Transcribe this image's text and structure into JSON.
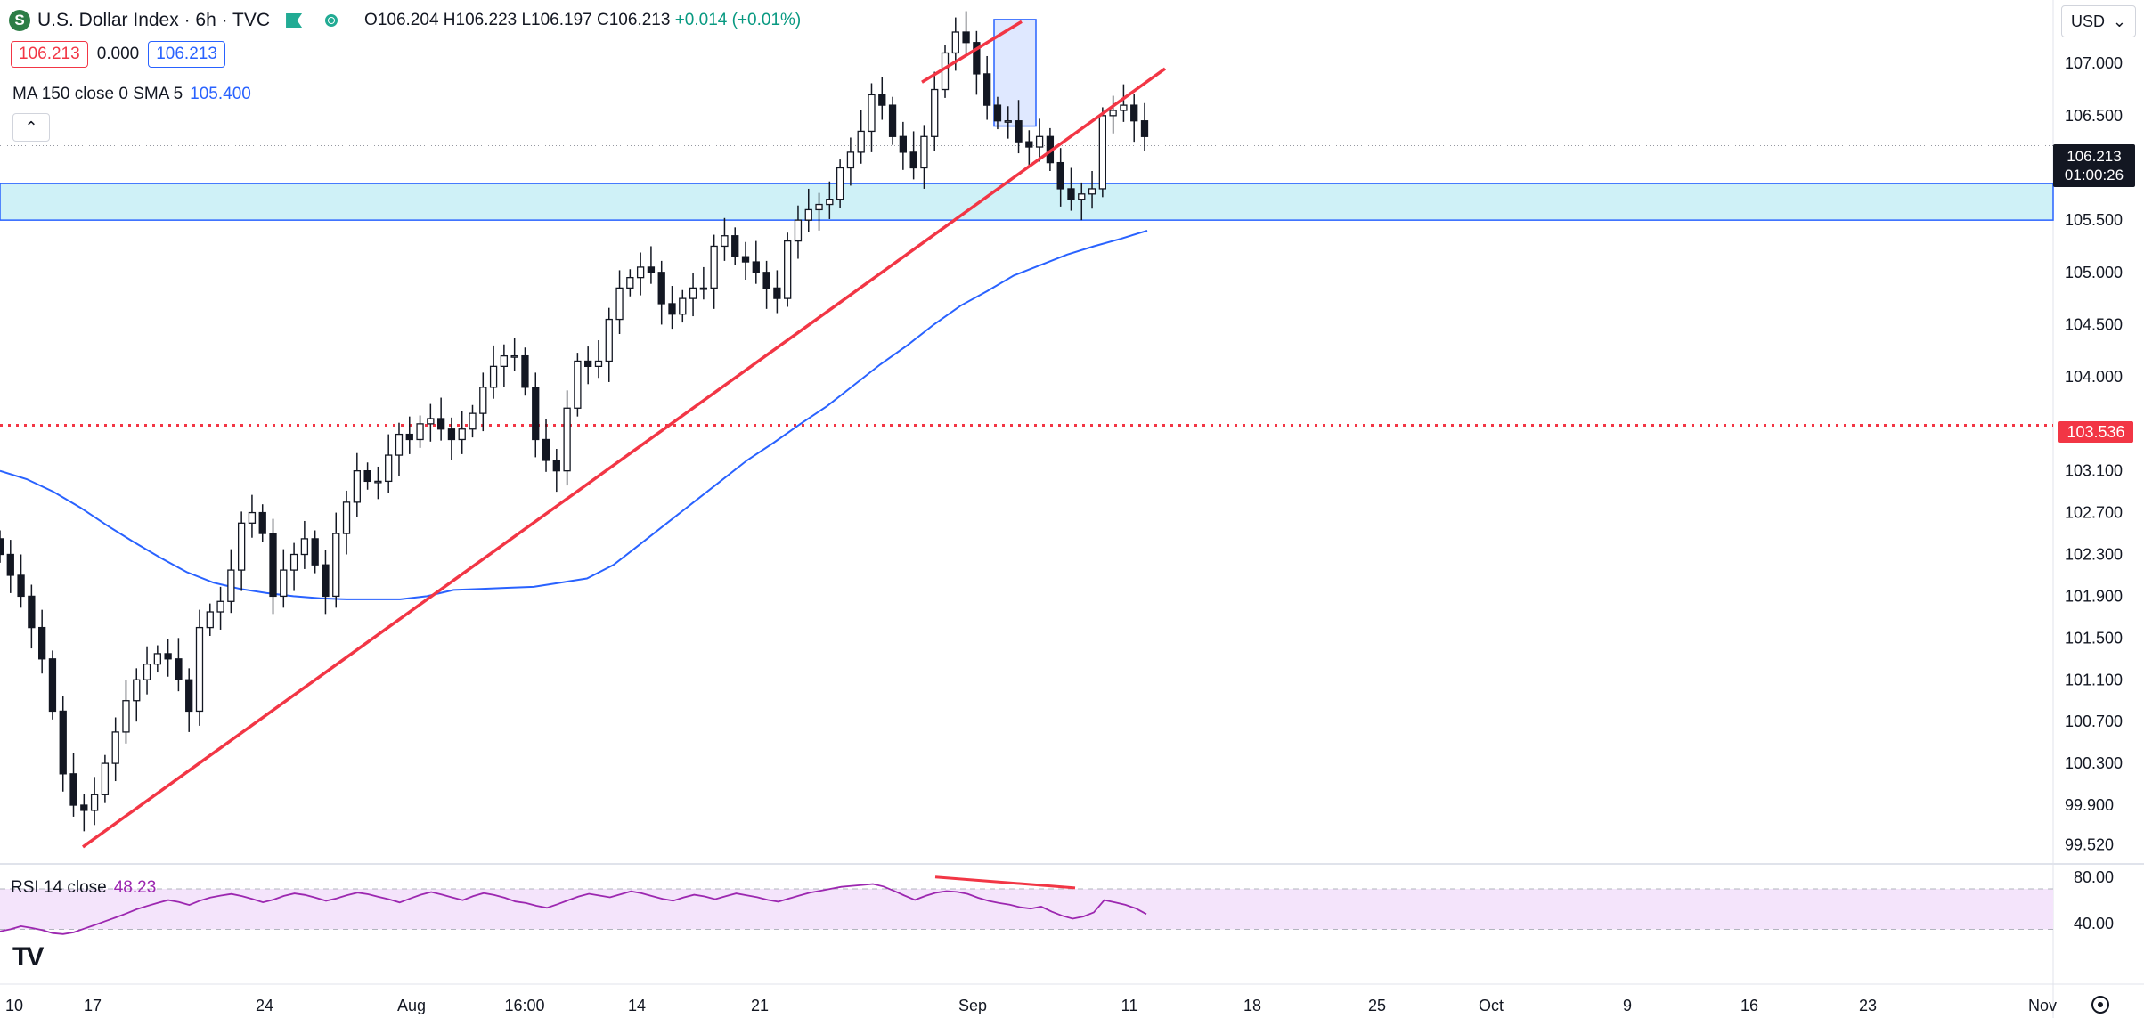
{
  "header": {
    "symbol_icon": "S",
    "title": "U.S. Dollar Index · 6h · TVC",
    "ohlc_open": "O106.204",
    "ohlc_high": "H106.223",
    "ohlc_low": "L106.197",
    "ohlc_close": "C106.213",
    "ohlc_change": "+0.014 (+0.01%)"
  },
  "badges": {
    "bid": "106.213",
    "spread": "0.000",
    "ask": "106.213"
  },
  "ma_legend": {
    "label": "MA 150 close 0 SMA 5",
    "value": "105.400"
  },
  "rsi_legend": {
    "label": "RSI 14 close",
    "value": "48.23"
  },
  "currency": {
    "label": "USD",
    "icon": "chevron-down-icon"
  },
  "price_labels": {
    "last": "106.213",
    "countdown": "01:00:26",
    "reference": "103.536"
  },
  "colors": {
    "up": "#ffffff",
    "down": "#131722",
    "ma": "#2962ff",
    "trend": "#f23645",
    "zone": "#cff1f7",
    "rsi_line": "#9c27b0",
    "rsi_band": "#f4e4fb"
  },
  "chart_data": {
    "type": "candlestick",
    "interval": "6h",
    "y_ticks": [
      "107.000",
      "106.500",
      "105.500",
      "105.000",
      "104.500",
      "104.000",
      "103.100",
      "102.700",
      "102.300",
      "101.900",
      "101.500",
      "101.100",
      "100.700",
      "100.300",
      "99.900",
      "99.520"
    ],
    "x_ticks": [
      "10",
      "17",
      "24",
      "Aug",
      "16:00",
      "14",
      "21",
      "Sep",
      "11",
      "18",
      "25",
      "Oct",
      "9",
      "16",
      "23",
      "Nov"
    ],
    "closes": [
      102.3,
      102.1,
      101.9,
      101.6,
      101.3,
      100.8,
      100.2,
      99.9,
      99.85,
      100.0,
      100.3,
      100.6,
      100.9,
      101.1,
      101.25,
      101.35,
      101.3,
      101.1,
      100.8,
      101.6,
      101.75,
      101.85,
      102.15,
      102.6,
      102.7,
      102.5,
      101.9,
      102.15,
      102.3,
      102.45,
      102.2,
      101.9,
      102.5,
      102.8,
      103.1,
      103.0,
      103.0,
      103.25,
      103.45,
      103.4,
      103.55,
      103.6,
      103.5,
      103.4,
      103.5,
      103.65,
      103.9,
      104.1,
      104.2,
      104.2,
      103.9,
      103.4,
      103.2,
      103.1,
      103.7,
      104.15,
      104.1,
      104.15,
      104.55,
      104.85,
      104.95,
      105.05,
      105.0,
      104.7,
      104.6,
      104.75,
      104.85,
      104.85,
      105.25,
      105.35,
      105.15,
      105.1,
      105.0,
      104.85,
      104.75,
      105.3,
      105.5,
      105.6,
      105.65,
      105.7,
      106.0,
      106.15,
      106.35,
      106.7,
      106.6,
      106.3,
      106.15,
      106.0,
      106.3,
      106.75,
      107.1,
      107.3,
      107.2,
      106.9,
      106.6,
      106.45,
      106.45,
      106.25,
      106.2,
      106.3,
      106.05,
      105.8,
      105.7,
      105.75,
      105.8,
      106.5,
      106.55,
      106.6,
      106.45,
      106.3
    ],
    "candle_x_range": [
      0,
      1285
    ],
    "ma150_values": [
      103.1,
      103.02,
      102.9,
      102.75,
      102.58,
      102.42,
      102.27,
      102.13,
      102.03,
      101.97,
      101.93,
      101.9,
      101.88,
      101.87,
      101.87,
      101.87,
      101.9,
      101.96,
      101.97,
      101.98,
      101.99,
      102.03,
      102.07,
      102.2,
      102.4,
      102.6,
      102.8,
      103.0,
      103.2,
      103.37,
      103.55,
      103.72,
      103.92,
      104.12,
      104.3,
      104.5,
      104.68,
      104.82,
      104.97,
      105.07,
      105.17,
      105.25,
      105.32,
      105.4
    ],
    "ma150_x_range": [
      0,
      1288
    ],
    "reference_level": 103.536,
    "support_zone": [
      105.5,
      105.85
    ],
    "trendlines": [
      {
        "role": "rising-support",
        "start": [
          93,
          99.5
        ],
        "end": [
          1308,
          106.95
        ]
      },
      {
        "role": "top-resistance",
        "start": [
          1035,
          106.82
        ],
        "end": [
          1147,
          107.4
        ]
      }
    ],
    "highlight_box": {
      "x_range": [
        1116,
        1163
      ],
      "y_range": [
        106.4,
        107.42
      ]
    },
    "rsi": {
      "ylim": [
        30,
        80
      ],
      "band": [
        35,
        70
      ],
      "ticks": [
        "80.00",
        "40.00"
      ],
      "values": [
        33.2,
        35.1,
        37.8,
        36.2,
        34.5,
        31.8,
        30.9,
        32.4,
        35.6,
        38.8,
        42.1,
        45.3,
        48.7,
        52.4,
        55.2,
        57.9,
        60.3,
        58.7,
        56.1,
        59.8,
        62.5,
        64.2,
        65.6,
        63.8,
        61.2,
        58.4,
        60.7,
        63.9,
        66.1,
        64.8,
        62.4,
        59.7,
        61.8,
        64.5,
        66.8,
        65.4,
        63.1,
        60.9,
        58.2,
        61.7,
        64.9,
        67.3,
        65.1,
        62.6,
        60.2,
        63.8,
        66.4,
        64.7,
        62.3,
        59.1,
        57.8,
        55.4,
        53.6,
        56.7,
        60.1,
        63.4,
        65.8,
        64.2,
        62.7,
        65.3,
        67.9,
        66.2,
        63.8,
        61.4,
        59.8,
        62.6,
        64.9,
        63.5,
        61.1,
        63.7,
        66.1,
        64.4,
        62.8,
        60.5,
        58.9,
        61.6,
        64.2,
        66.8,
        68.4,
        70.1,
        71.8,
        72.6,
        73.4,
        74.2,
        72.1,
        68.3,
        64.2,
        60.5,
        63.9,
        66.7,
        68.1,
        67.4,
        65.7,
        62.3,
        59.6,
        57.8,
        56.4,
        54.1,
        52.9,
        54.6,
        50.3,
        46.8,
        44.2,
        46.1,
        49.7,
        60.3,
        58.4,
        56.2,
        53.1,
        48.2
      ],
      "x_range": [
        0,
        1287
      ],
      "divergence": {
        "start": [
          1050,
          80.2
        ],
        "end": [
          1207,
          70.9
        ]
      }
    },
    "crosshair_price": 106.213
  }
}
